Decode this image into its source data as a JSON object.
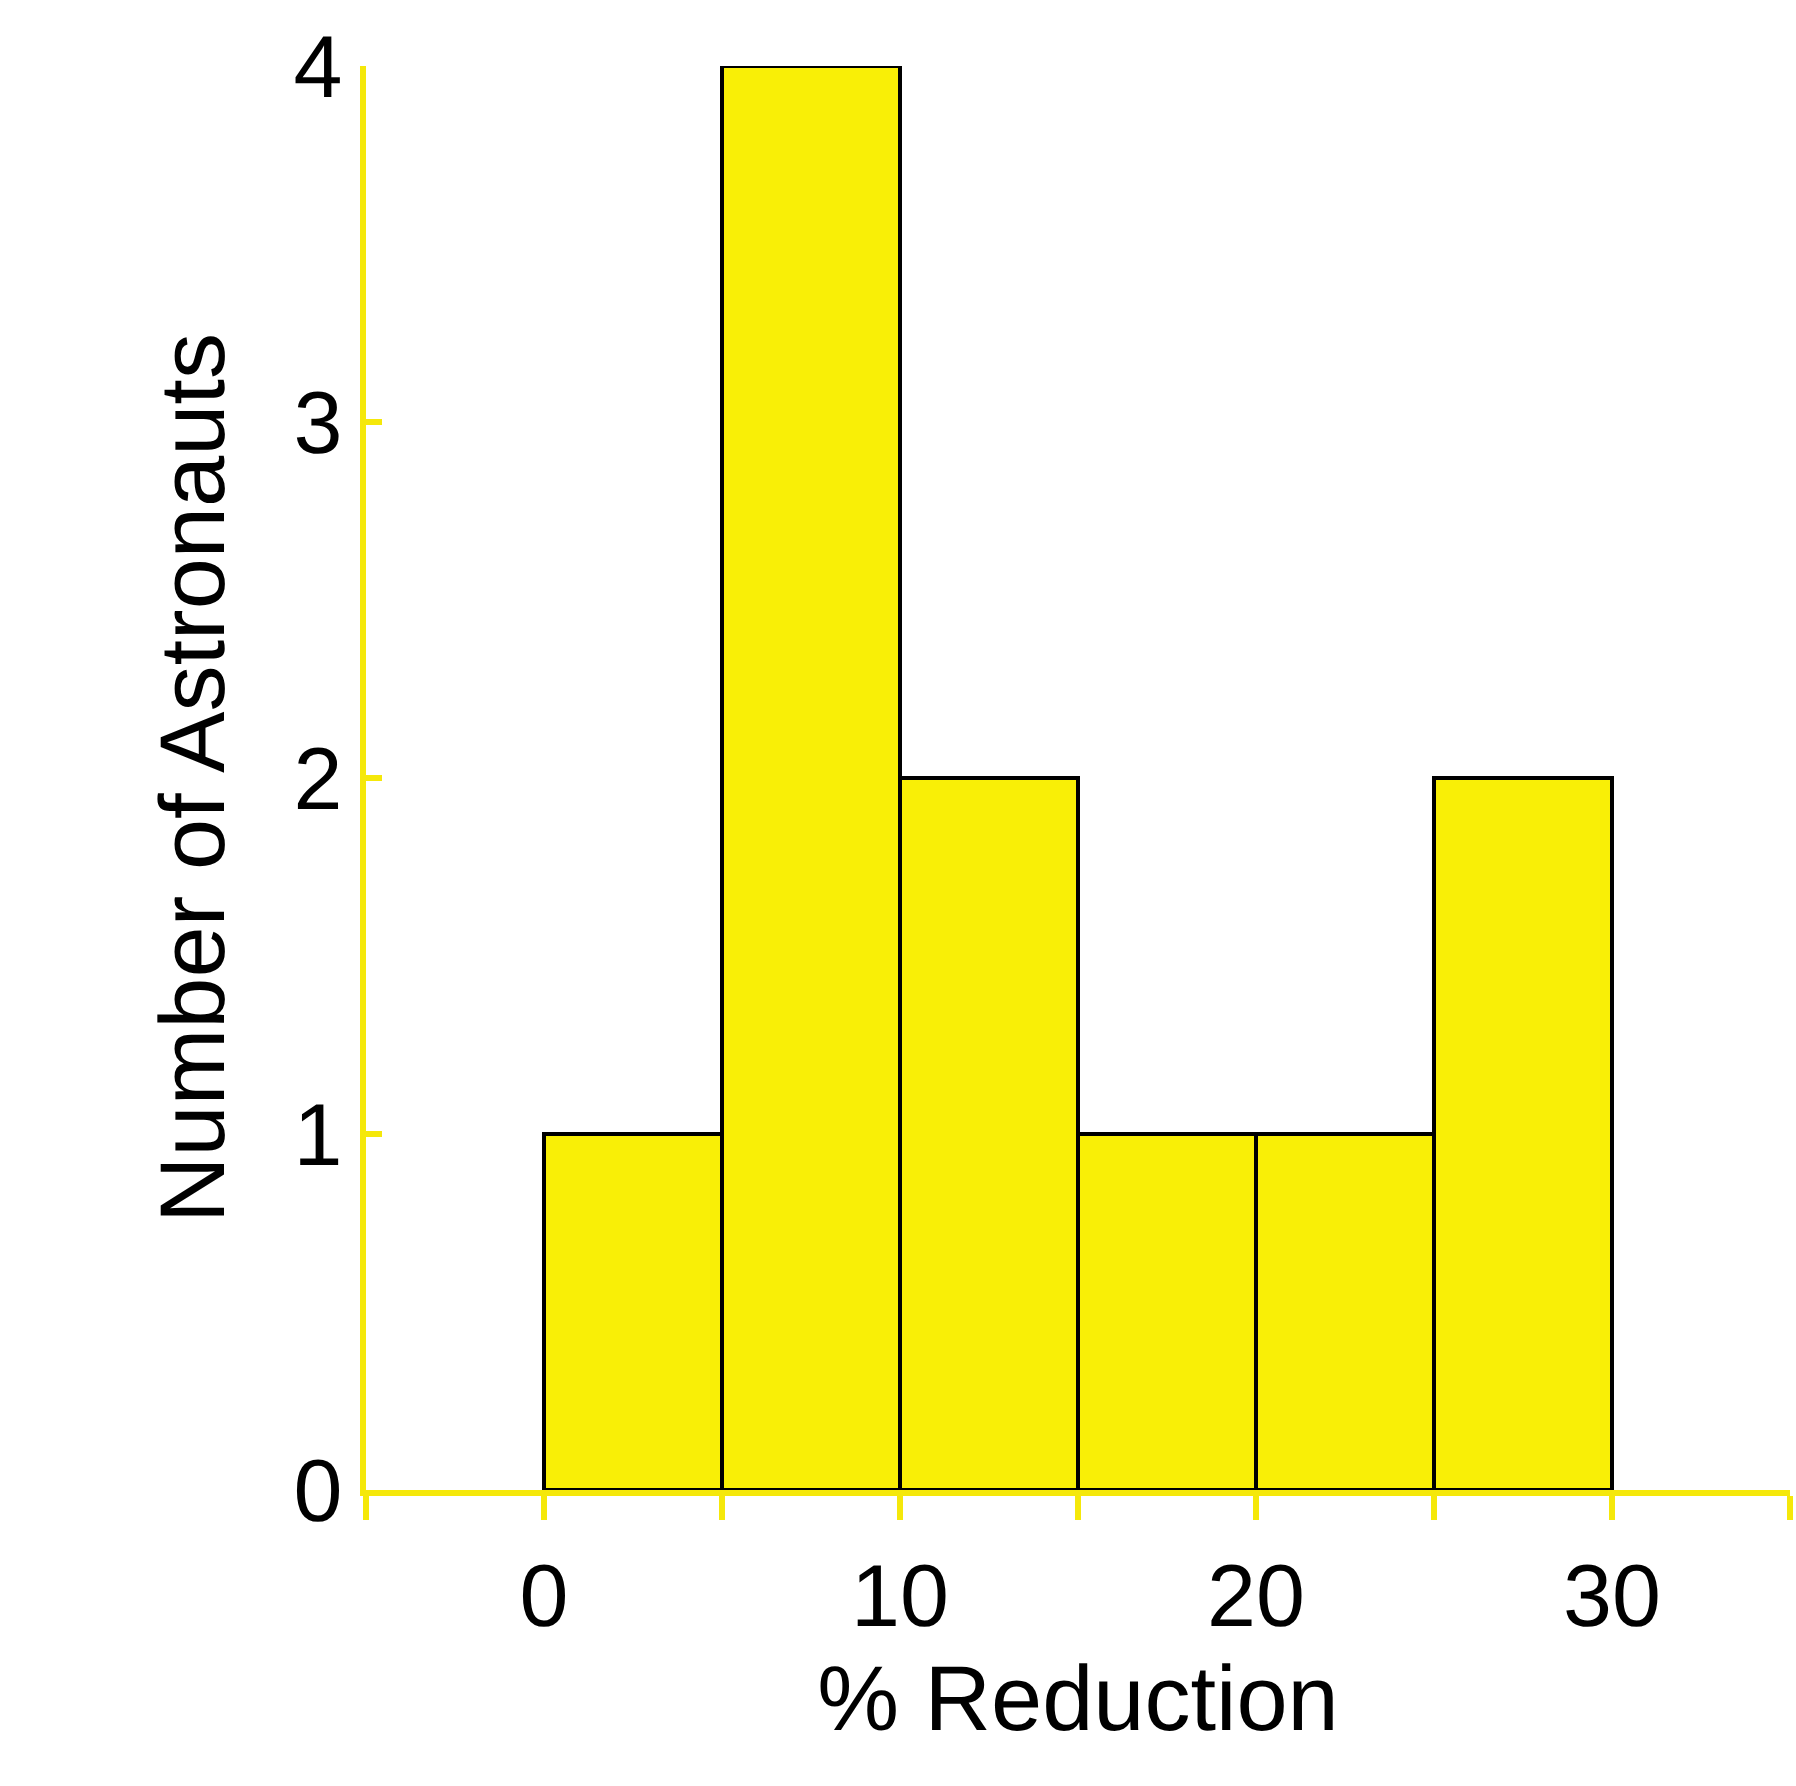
{
  "chart_data": {
    "type": "histogram",
    "xlabel": "% Reduction",
    "ylabel": "Number of Astronauts",
    "bins": [
      0,
      5,
      10,
      15,
      20,
      25,
      30
    ],
    "values": [
      1,
      4,
      2,
      1,
      1,
      2
    ],
    "color": "#f9ef06",
    "xlim": [
      -5,
      35
    ],
    "xticks": [
      {
        "value": -5,
        "label": null
      },
      0,
      {
        "value": 5,
        "label": null
      },
      10,
      {
        "value": 15,
        "label": null
      },
      20,
      {
        "value": 25,
        "label": null
      },
      30,
      {
        "value": 35,
        "label": null
      }
    ],
    "ylim": [
      0,
      4
    ],
    "yticks": [
      0,
      1,
      2,
      3,
      4
    ]
  }
}
